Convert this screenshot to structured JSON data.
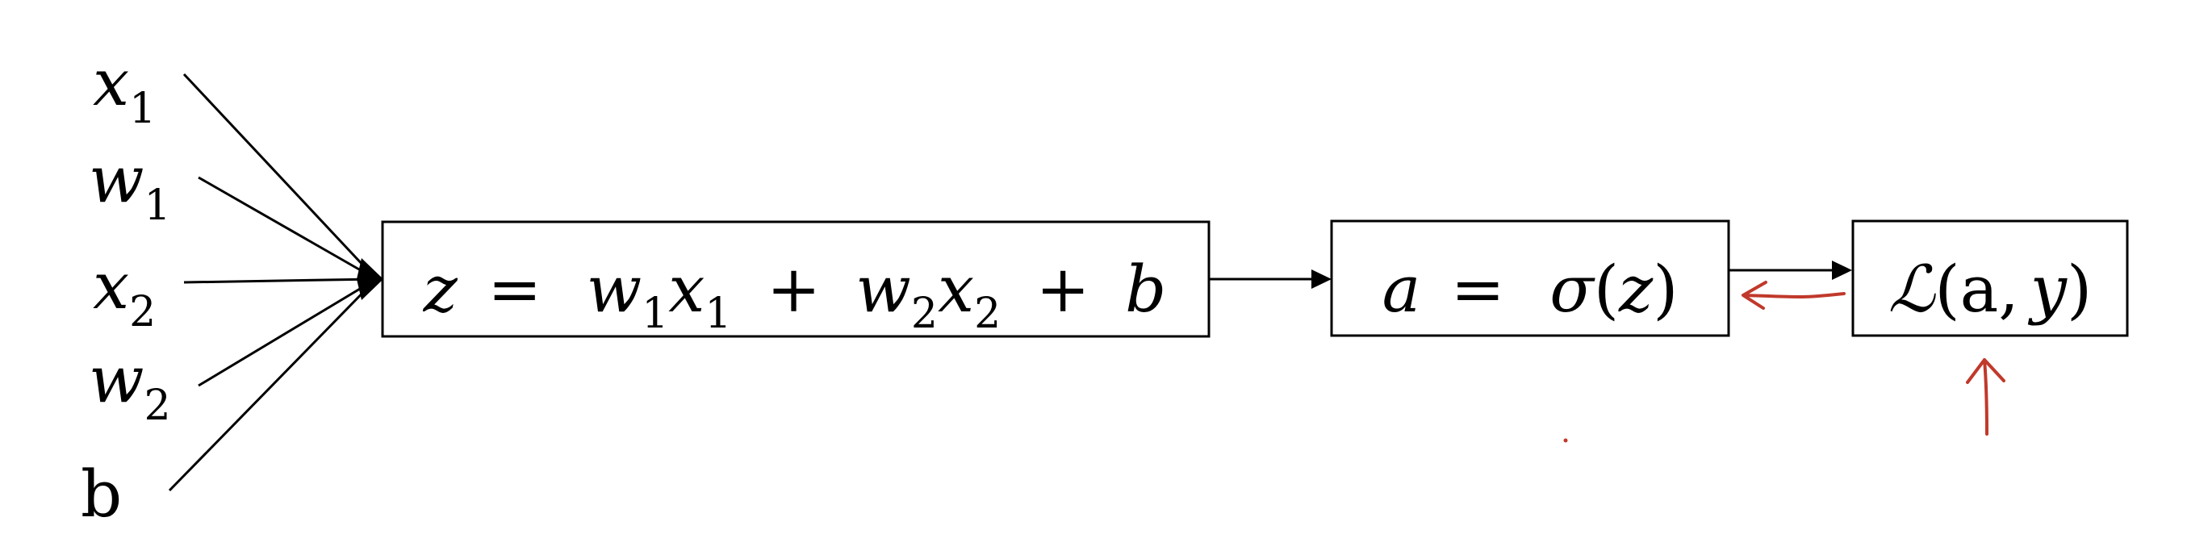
{
  "inputs": [
    {
      "base": "x",
      "sub": "1"
    },
    {
      "base": "w",
      "sub": "1"
    },
    {
      "base": "x",
      "sub": "2"
    },
    {
      "base": "w",
      "sub": "2"
    },
    {
      "base": "b",
      "sub": ""
    }
  ],
  "box_z": {
    "lhs": "z",
    "eq": "=",
    "w1": "w",
    "w1_sub": "1",
    "x1": "x",
    "x1_sub": "1",
    "plus1": "+",
    "w2": "w",
    "w2_sub": "2",
    "x2": "x",
    "x2_sub": "2",
    "plus2": "+",
    "b": "b"
  },
  "box_a": {
    "lhs": "a",
    "eq": "=",
    "sigma": "σ",
    "open": "(",
    "arg": "z",
    "close": ")"
  },
  "box_loss": {
    "symbol": "ℒ",
    "open": "(",
    "arg1": "a",
    "comma": ",",
    "arg2": "y",
    "close": ")"
  },
  "colors": {
    "ink": "#000000",
    "annotation": "#c0392b"
  }
}
